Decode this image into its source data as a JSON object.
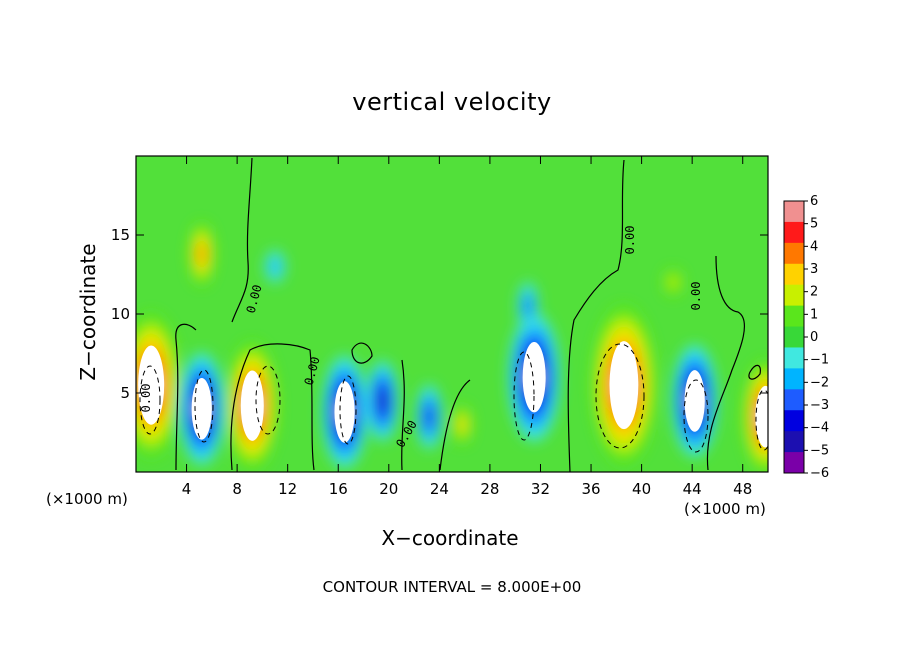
{
  "chart_data": {
    "type": "heatmap",
    "title": "vertical velocity",
    "xlabel": "X−coordinate",
    "ylabel": "Z−coordinate",
    "x_unit_label": "(×1000 m)",
    "x_ticks": [
      4,
      8,
      12,
      16,
      20,
      24,
      28,
      32,
      36,
      40,
      44,
      48
    ],
    "y_ticks": [
      5,
      10,
      15
    ],
    "xlim": [
      0,
      50
    ],
    "ylim": [
      0,
      20
    ],
    "colorbar_ticks": [
      "6",
      "5",
      "4",
      "3",
      "2",
      "1",
      "0",
      "−1",
      "−2",
      "−3",
      "−4",
      "−5",
      "−6"
    ],
    "colorbar_range": [
      -6,
      6
    ],
    "colorscale": [
      "#7a00a8",
      "#1c0fb0",
      "#0000e0",
      "#1e5cff",
      "#00b4ff",
      "#40e8e0",
      "#38d838",
      "#5ae61c",
      "#c8f000",
      "#ffd200",
      "#ff7800",
      "#ff1a1a",
      "#f09090"
    ],
    "contour_interval_text": "CONTOUR INTERVAL = 8.000E+00",
    "contour_labels": [
      "0.00",
      "0.00",
      "0.00",
      "0.00",
      "0.00",
      "0.00"
    ],
    "features": [
      {
        "x": 1.2,
        "z": 5.5,
        "w": 9,
        "kind": "updraft"
      },
      {
        "x": 5.2,
        "z": 13.8,
        "w": 4,
        "kind": "updraft"
      },
      {
        "x": 5.2,
        "z": 4.0,
        "w": -7,
        "kind": "downdraft"
      },
      {
        "x": 9.2,
        "z": 4.2,
        "w": 8,
        "kind": "updraft"
      },
      {
        "x": 16.5,
        "z": 3.8,
        "w": -7,
        "kind": "downdraft"
      },
      {
        "x": 19.5,
        "z": 4.5,
        "w": -5,
        "kind": "downdraft"
      },
      {
        "x": 23.2,
        "z": 3.5,
        "w": -4,
        "kind": "downdraft"
      },
      {
        "x": 25.8,
        "z": 3.0,
        "w": 2.5,
        "kind": "updraft"
      },
      {
        "x": 31.5,
        "z": 6.0,
        "w": -8,
        "kind": "downdraft"
      },
      {
        "x": 31.0,
        "z": 10.5,
        "w": -3,
        "kind": "downdraft"
      },
      {
        "x": 38.6,
        "z": 5.5,
        "w": 10,
        "kind": "updraft"
      },
      {
        "x": 44.2,
        "z": 4.5,
        "w": -7,
        "kind": "downdraft"
      },
      {
        "x": 49.8,
        "z": 3.5,
        "w": 7,
        "kind": "updraft"
      },
      {
        "x": 11.0,
        "z": 13.0,
        "w": -2,
        "kind": "downdraft"
      },
      {
        "x": 42.5,
        "z": 12.0,
        "w": 1.5,
        "kind": "updraft"
      }
    ]
  }
}
